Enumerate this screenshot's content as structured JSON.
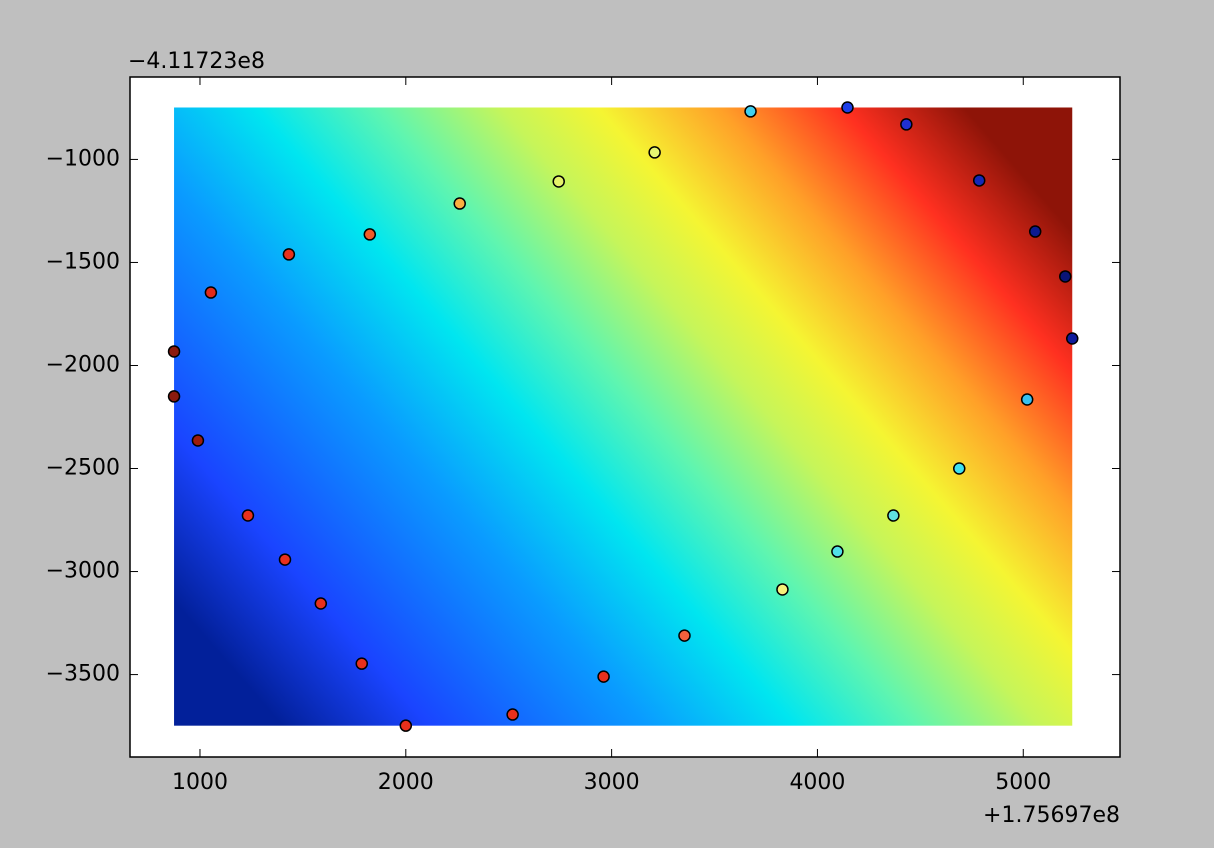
{
  "chart_data": {
    "type": "scatter",
    "y_offset_label": "−4.11723e8",
    "x_offset_label": "+1.75697e8",
    "xlim": [
      660,
      5470
    ],
    "ylim": [
      -3900,
      -600
    ],
    "xticks": [
      1000,
      2000,
      3000,
      4000,
      5000
    ],
    "yticks": [
      {
        "value": -1000,
        "label": "−1000"
      },
      {
        "value": -1500,
        "label": "−1500"
      },
      {
        "value": -2000,
        "label": "−2000"
      },
      {
        "value": -2500,
        "label": "−2500"
      },
      {
        "value": -3000,
        "label": "−3000"
      },
      {
        "value": -3500,
        "label": "−3500"
      }
    ],
    "x": [
      874,
      874,
      990,
      1053,
      1233,
      1432,
      1413,
      1587,
      1825,
      1786,
      2000,
      2262,
      2519,
      2743,
      2961,
      3209,
      3354,
      3675,
      3830,
      4146,
      4097,
      4432,
      4369,
      4786,
      4689,
      5058,
      5019,
      5204,
      5238
    ],
    "values": [
      -1932,
      -2150,
      -2364,
      -1646,
      -2728,
      -1461,
      -2942,
      -3155,
      -1364,
      -3447,
      -3748,
      -1214,
      -3694,
      -1107,
      -3510,
      -966,
      -3311,
      -767,
      -3087,
      -748,
      -2903,
      -830,
      -2728,
      -1102,
      -2500,
      -1350,
      -2165,
      -1568,
      -1869
    ],
    "colors": [
      "#8b1a0e",
      "#8b1a0e",
      "#9e1c0c",
      "#e02a1a",
      "#e8301c",
      "#e8301c",
      "#e8301c",
      "#e8301c",
      "#f25a28",
      "#e8301c",
      "#e8301c",
      "#fbb040",
      "#e8301c",
      "#e4f26a",
      "#e8301c",
      "#e6f570",
      "#f2603c",
      "#40d0f0",
      "#f5f07a",
      "#1f3fe8",
      "#50e0e8",
      "#2030d0",
      "#60e0e0",
      "#1428b8",
      "#40e0f0",
      "#0c1a90",
      "#38c0f0",
      "#0a1478",
      "#101c9c"
    ],
    "grid": false
  }
}
